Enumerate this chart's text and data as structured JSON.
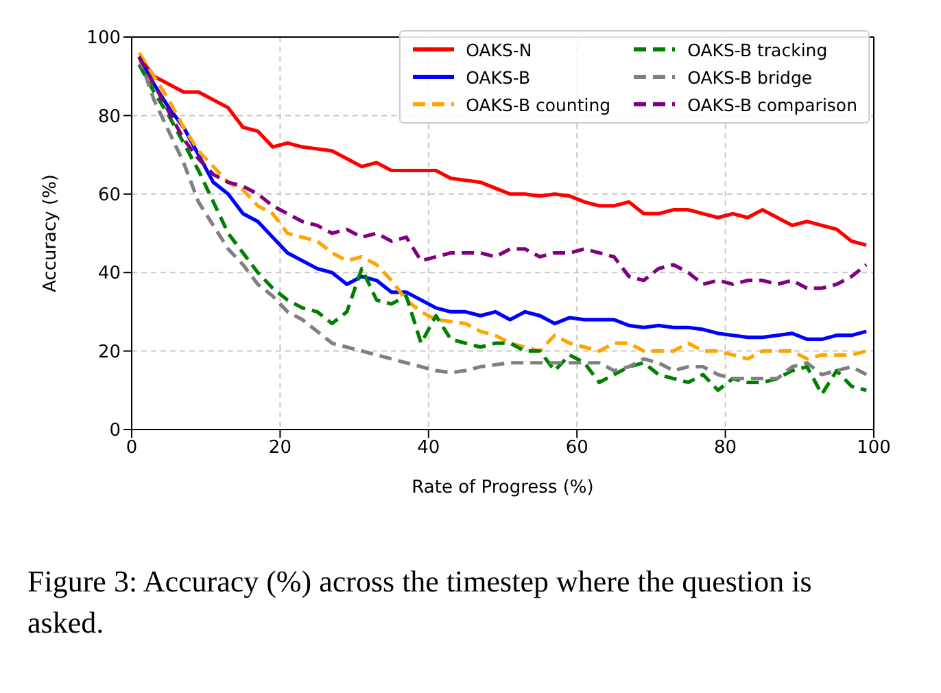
{
  "chart_data": {
    "type": "line",
    "xlabel": "Rate of Progress (%)",
    "ylabel": "Accuracy (%)",
    "annotations": [
      "Figure 3: Accuracy (%) across the timestep where the question is asked."
    ],
    "x": [
      1,
      3,
      5,
      7,
      9,
      11,
      13,
      15,
      17,
      19,
      21,
      23,
      25,
      27,
      29,
      31,
      33,
      35,
      37,
      39,
      41,
      43,
      45,
      47,
      49,
      51,
      53,
      55,
      57,
      59,
      61,
      63,
      65,
      67,
      69,
      71,
      73,
      75,
      77,
      79,
      81,
      83,
      85,
      87,
      89,
      91,
      93,
      95,
      97,
      99
    ],
    "xlim": [
      0,
      100
    ],
    "xticks": [
      0,
      20,
      40,
      60,
      80,
      100
    ],
    "ylim": [
      0,
      100
    ],
    "yticks": [
      0,
      20,
      40,
      60,
      80,
      100
    ],
    "grid": true,
    "legend": "top right",
    "marker": "none",
    "series": [
      {
        "name": "OAKS-N",
        "color": "#ff0000",
        "line_style": "solid",
        "values": [
          95,
          90,
          88,
          86,
          86,
          84,
          82,
          77,
          76,
          72,
          73,
          72,
          71.5,
          71,
          69,
          67,
          68,
          66,
          66,
          66,
          66,
          64,
          63.5,
          63,
          61.5,
          60,
          60,
          59.5,
          60,
          59.5,
          58,
          57,
          57,
          58,
          55,
          55,
          56,
          56,
          55,
          54,
          55,
          54,
          56,
          54,
          52,
          53,
          52,
          51,
          48,
          47
        ]
      },
      {
        "name": "OAKS-B",
        "color": "#0000ff",
        "line_style": "solid",
        "values": [
          95,
          88,
          82,
          77,
          70,
          63,
          60,
          55,
          53,
          49,
          45,
          43,
          41,
          40,
          37,
          39,
          38,
          35,
          35,
          33,
          31,
          30,
          30,
          29,
          30,
          28,
          30,
          29,
          27,
          28.5,
          28,
          28,
          28,
          26.5,
          26,
          26.5,
          26,
          26,
          25.5,
          24.5,
          24,
          23.5,
          23.5,
          24,
          24.5,
          23,
          23,
          24,
          24,
          25
        ]
      },
      {
        "name": "OAKS-B counting",
        "color": "#ffa500",
        "line_style": "dashed",
        "values": [
          96,
          90,
          84,
          77,
          71,
          67,
          63,
          61,
          57,
          55,
          50,
          49,
          48,
          45,
          43,
          44,
          42,
          38,
          33,
          30,
          28,
          27.5,
          27,
          25,
          24,
          22,
          21,
          20,
          24,
          22,
          21,
          20,
          22,
          22,
          20,
          20,
          20,
          22,
          20,
          20,
          19,
          18,
          20,
          20,
          20,
          18,
          19,
          19,
          19,
          20
        ]
      },
      {
        "name": "OAKS-B tracking",
        "color": "#008000",
        "line_style": "dashed",
        "values": [
          93,
          86,
          80,
          73,
          66,
          58,
          50,
          45,
          40,
          36,
          33,
          31,
          30,
          27,
          30,
          41,
          33,
          32,
          34,
          22,
          29,
          23,
          22,
          21,
          22,
          22,
          20,
          20,
          15,
          19,
          17,
          12,
          14,
          16,
          17,
          14,
          13,
          12,
          14,
          10,
          13,
          12,
          12,
          13,
          15,
          16,
          9,
          15,
          11,
          10
        ]
      },
      {
        "name": "OAKS-B bridge",
        "color": "#808080",
        "line_style": "dashed",
        "values": [
          95,
          84,
          76,
          68,
          58,
          52,
          46,
          42,
          37,
          34,
          30,
          28,
          25,
          22,
          21,
          20,
          19,
          18,
          17,
          16,
          15,
          14.5,
          15,
          16,
          16.5,
          17,
          17,
          17,
          17,
          17,
          17,
          17,
          15,
          16,
          18,
          17,
          15,
          16,
          16,
          14,
          13,
          13,
          13,
          13,
          16,
          17,
          14,
          15,
          16,
          14
        ]
      },
      {
        "name": "OAKS-B comparison",
        "color": "#800080",
        "line_style": "dashed",
        "values": [
          95,
          88,
          81,
          74,
          69,
          65,
          63,
          62,
          60,
          57,
          55,
          53,
          52,
          50,
          51,
          49,
          50,
          48,
          49,
          43,
          44,
          45,
          45,
          45,
          44,
          46,
          46,
          44,
          45,
          45,
          46,
          45,
          44,
          39,
          38,
          41,
          42,
          40,
          37,
          38,
          37,
          38,
          38,
          37,
          38,
          36,
          36,
          37,
          39,
          42
        ]
      }
    ]
  }
}
